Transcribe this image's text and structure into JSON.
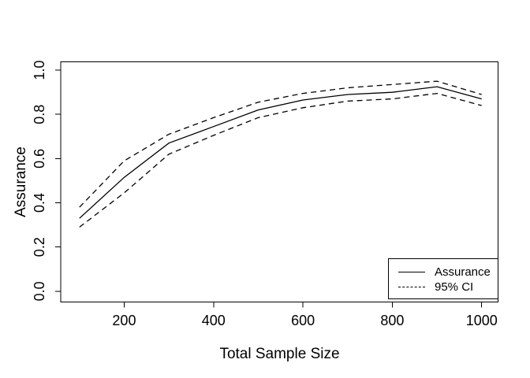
{
  "chart_data": {
    "type": "line",
    "title": "",
    "xlabel": "Total Sample Size",
    "ylabel": "Assurance",
    "x": [
      100,
      200,
      300,
      400,
      500,
      600,
      700,
      800,
      900,
      1000
    ],
    "series": [
      {
        "name": "Assurance",
        "style": "solid",
        "values": [
          0.33,
          0.515,
          0.67,
          0.745,
          0.82,
          0.865,
          0.89,
          0.9,
          0.925,
          0.87
        ]
      },
      {
        "name": "95% CI upper",
        "style": "dashed",
        "values": [
          0.38,
          0.59,
          0.71,
          0.785,
          0.855,
          0.895,
          0.92,
          0.935,
          0.95,
          0.89
        ]
      },
      {
        "name": "95% CI lower",
        "style": "dashed",
        "values": [
          0.29,
          0.445,
          0.62,
          0.705,
          0.785,
          0.83,
          0.86,
          0.87,
          0.895,
          0.84
        ]
      }
    ],
    "x_ticks": [
      200,
      400,
      600,
      800,
      1000
    ],
    "x_tick_labels": [
      "200",
      "400",
      "600",
      "800",
      "1000"
    ],
    "y_ticks": [
      0.0,
      0.2,
      0.4,
      0.6,
      0.8,
      1.0
    ],
    "y_tick_labels": [
      "0.0",
      "0.2",
      "0.4",
      "0.6",
      "0.8",
      "1.0"
    ],
    "xlim": [
      58,
      1037
    ],
    "ylim": [
      -0.048,
      1.037
    ],
    "grid": false,
    "line_color": "#000000",
    "background": "#ffffff",
    "legend": {
      "position": "bottomright",
      "entries": [
        {
          "label": "Assurance",
          "style": "solid"
        },
        {
          "label": "95% CI",
          "style": "dashed"
        }
      ]
    }
  }
}
